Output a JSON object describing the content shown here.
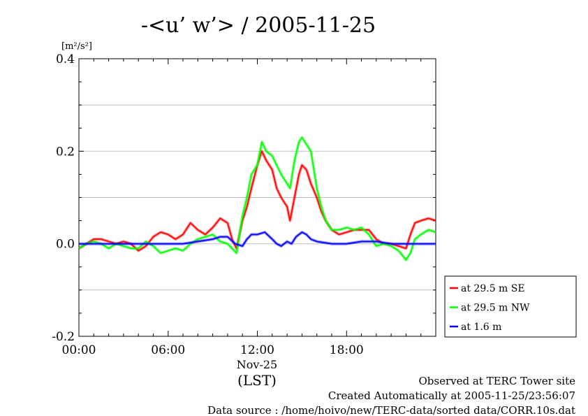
{
  "chart_data": {
    "type": "line",
    "title": "-<u’ w’> / 2005-11-25",
    "ylabel": "[m²/s²]",
    "ylim": [
      -0.2,
      0.4
    ],
    "yticks": [
      {
        "value": 0.4,
        "label": "0.4"
      },
      {
        "value": 0.2,
        "label": "0.2"
      },
      {
        "value": 0.0,
        "label": "0.0"
      },
      {
        "value": -0.2,
        "label": "-0.2"
      }
    ],
    "xlim": [
      0,
      24
    ],
    "xticks": [
      {
        "value": 0,
        "label": "00:00"
      },
      {
        "value": 6,
        "label": "06:00"
      },
      {
        "value": 12,
        "label": "12:00"
      },
      {
        "value": 18,
        "label": "18:00"
      }
    ],
    "xlabel_date": "Nov-25",
    "xlabel_tz": "(LST)",
    "grid": true,
    "legend_position": "right-bottom",
    "series": [
      {
        "name": "at 29.5 m SE",
        "color": "#ff0000",
        "points": [
          [
            0,
            -0.01
          ],
          [
            0.5,
            0.0
          ],
          [
            1,
            0.01
          ],
          [
            1.5,
            0.01
          ],
          [
            2,
            0.005
          ],
          [
            2.5,
            0.0
          ],
          [
            3,
            0.005
          ],
          [
            3.5,
            0.0
          ],
          [
            4,
            -0.015
          ],
          [
            4.5,
            -0.005
          ],
          [
            5,
            0.015
          ],
          [
            5.5,
            0.025
          ],
          [
            6,
            0.02
          ],
          [
            6.5,
            0.01
          ],
          [
            7,
            0.02
          ],
          [
            7.5,
            0.045
          ],
          [
            8,
            0.03
          ],
          [
            8.5,
            0.02
          ],
          [
            9,
            0.035
          ],
          [
            9.5,
            0.055
          ],
          [
            10,
            0.045
          ],
          [
            10.3,
            0.01
          ],
          [
            10.6,
            -0.01
          ],
          [
            11,
            0.05
          ],
          [
            11.3,
            0.08
          ],
          [
            11.6,
            0.12
          ],
          [
            12,
            0.17
          ],
          [
            12.3,
            0.2
          ],
          [
            12.6,
            0.18
          ],
          [
            13,
            0.16
          ],
          [
            13.3,
            0.12
          ],
          [
            13.6,
            0.1
          ],
          [
            14,
            0.08
          ],
          [
            14.2,
            0.05
          ],
          [
            14.5,
            0.1
          ],
          [
            14.8,
            0.15
          ],
          [
            15,
            0.17
          ],
          [
            15.3,
            0.16
          ],
          [
            15.6,
            0.13
          ],
          [
            16,
            0.1
          ],
          [
            16.3,
            0.07
          ],
          [
            16.6,
            0.05
          ],
          [
            17,
            0.03
          ],
          [
            17.5,
            0.02
          ],
          [
            18,
            0.025
          ],
          [
            18.5,
            0.03
          ],
          [
            19,
            0.03
          ],
          [
            19.5,
            0.03
          ],
          [
            20,
            0.01
          ],
          [
            20.5,
            0.0
          ],
          [
            21,
            0.0
          ],
          [
            21.5,
            -0.005
          ],
          [
            22,
            -0.01
          ],
          [
            22.3,
            0.02
          ],
          [
            22.6,
            0.045
          ],
          [
            23,
            0.05
          ],
          [
            23.5,
            0.055
          ],
          [
            24,
            0.05
          ]
        ]
      },
      {
        "name": "at 29.5 m NW",
        "color": "#00ff00",
        "points": [
          [
            0,
            -0.01
          ],
          [
            0.5,
            0.0
          ],
          [
            1,
            0.005
          ],
          [
            1.5,
            0.0
          ],
          [
            2,
            -0.01
          ],
          [
            2.5,
            0.0
          ],
          [
            3,
            -0.005
          ],
          [
            3.5,
            -0.01
          ],
          [
            4,
            -0.01
          ],
          [
            4.5,
            0.005
          ],
          [
            5,
            -0.005
          ],
          [
            5.5,
            -0.02
          ],
          [
            6,
            -0.015
          ],
          [
            6.5,
            -0.01
          ],
          [
            7,
            -0.015
          ],
          [
            7.5,
            0.0
          ],
          [
            8,
            0.01
          ],
          [
            8.5,
            0.015
          ],
          [
            9,
            0.02
          ],
          [
            9.5,
            0.005
          ],
          [
            10,
            0.0
          ],
          [
            10.3,
            -0.01
          ],
          [
            10.6,
            -0.02
          ],
          [
            11,
            0.06
          ],
          [
            11.3,
            0.1
          ],
          [
            11.6,
            0.15
          ],
          [
            12,
            0.17
          ],
          [
            12.3,
            0.22
          ],
          [
            12.6,
            0.2
          ],
          [
            13,
            0.19
          ],
          [
            13.3,
            0.17
          ],
          [
            13.6,
            0.15
          ],
          [
            14,
            0.13
          ],
          [
            14.2,
            0.12
          ],
          [
            14.5,
            0.18
          ],
          [
            14.8,
            0.22
          ],
          [
            15,
            0.23
          ],
          [
            15.3,
            0.215
          ],
          [
            15.6,
            0.2
          ],
          [
            16,
            0.12
          ],
          [
            16.3,
            0.08
          ],
          [
            16.6,
            0.05
          ],
          [
            17,
            0.03
          ],
          [
            17.5,
            0.03
          ],
          [
            18,
            0.035
          ],
          [
            18.5,
            0.03
          ],
          [
            19,
            0.035
          ],
          [
            19.5,
            0.02
          ],
          [
            20,
            -0.005
          ],
          [
            20.5,
            0.0
          ],
          [
            21,
            -0.005
          ],
          [
            21.5,
            -0.015
          ],
          [
            22,
            -0.035
          ],
          [
            22.3,
            -0.02
          ],
          [
            22.6,
            0.01
          ],
          [
            23,
            0.02
          ],
          [
            23.5,
            0.03
          ],
          [
            24,
            0.025
          ]
        ]
      },
      {
        "name": "at 1.6 m",
        "color": "#0000ff",
        "points": [
          [
            0,
            0.0
          ],
          [
            1,
            0.0
          ],
          [
            2,
            0.0
          ],
          [
            3,
            0.0
          ],
          [
            4,
            0.0
          ],
          [
            5,
            0.0
          ],
          [
            6,
            0.0
          ],
          [
            7,
            0.0
          ],
          [
            8,
            0.005
          ],
          [
            9,
            0.01
          ],
          [
            9.5,
            0.015
          ],
          [
            10,
            0.015
          ],
          [
            10.5,
            0.0
          ],
          [
            11,
            -0.005
          ],
          [
            11.3,
            0.01
          ],
          [
            11.6,
            0.02
          ],
          [
            12,
            0.02
          ],
          [
            12.5,
            0.025
          ],
          [
            13,
            0.01
          ],
          [
            13.3,
            0.0
          ],
          [
            13.6,
            -0.005
          ],
          [
            14,
            0.005
          ],
          [
            14.3,
            0.0
          ],
          [
            14.6,
            0.015
          ],
          [
            15,
            0.025
          ],
          [
            15.3,
            0.02
          ],
          [
            15.6,
            0.01
          ],
          [
            16,
            0.005
          ],
          [
            17,
            0.0
          ],
          [
            18,
            0.0
          ],
          [
            19,
            0.005
          ],
          [
            20,
            0.005
          ],
          [
            21,
            0.0
          ],
          [
            22,
            0.0
          ],
          [
            23,
            0.0
          ],
          [
            24,
            0.0
          ]
        ]
      }
    ]
  },
  "footer": {
    "line1": "Observed at TERC Tower site",
    "line2": "Created Automatically at 2005-11-25/23:56:07",
    "line3": "Data source : /home/hoivo/new/TERC-data/sorted  data/CORR.10s.dat"
  }
}
